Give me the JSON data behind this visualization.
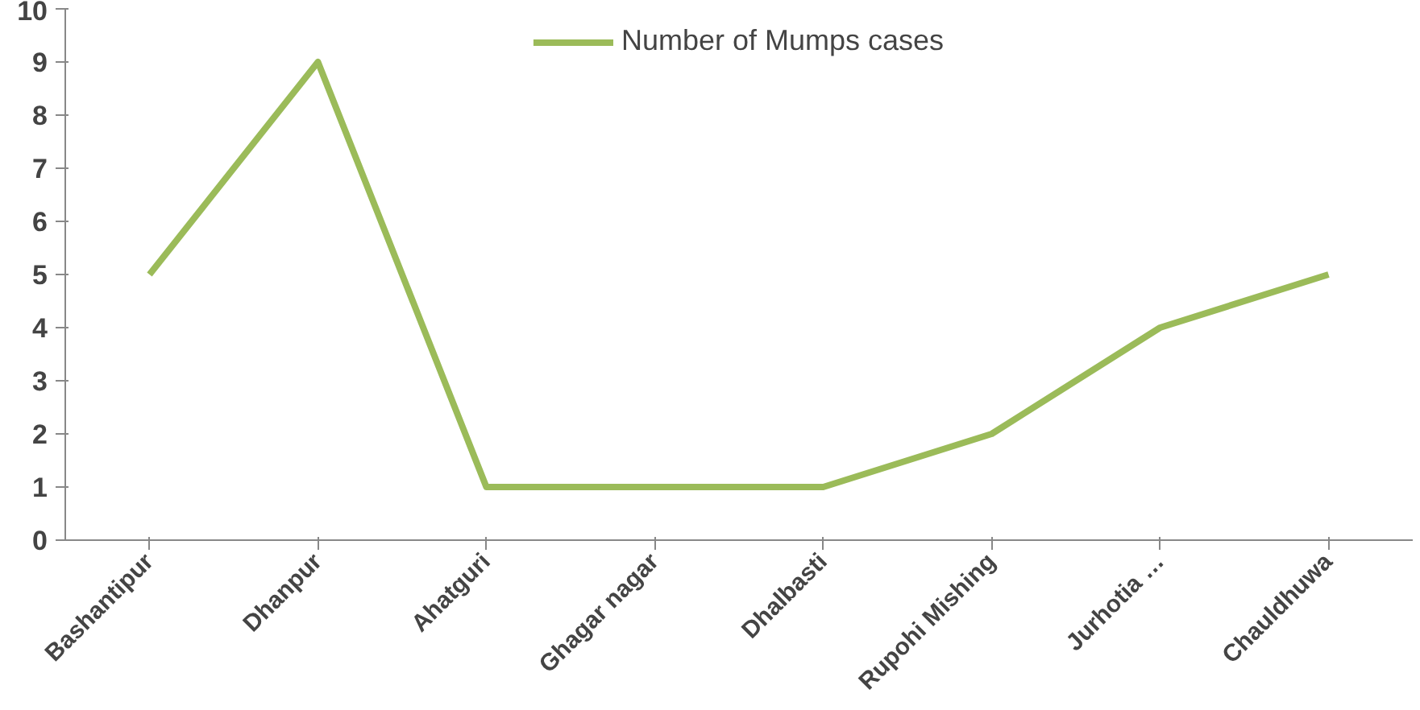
{
  "chart_data": {
    "type": "line",
    "categories": [
      "Bashantipur",
      "Dhanpur",
      "Ahatguri",
      "Ghagar nagar",
      "Dhalbasti",
      "Rupohi Mishing",
      "Jurhotia …",
      "Chauldhuwa"
    ],
    "series": [
      {
        "name": "Number of Mumps cases",
        "color": "#9bbb59",
        "values": [
          5,
          9,
          1,
          1,
          1,
          2,
          4,
          5
        ]
      }
    ],
    "ylim": [
      0,
      10
    ],
    "yticks": [
      0,
      1,
      2,
      3,
      4,
      5,
      6,
      7,
      8,
      9,
      10
    ],
    "grid": false,
    "legend": "top",
    "marker": "none",
    "line_style": "solid"
  }
}
